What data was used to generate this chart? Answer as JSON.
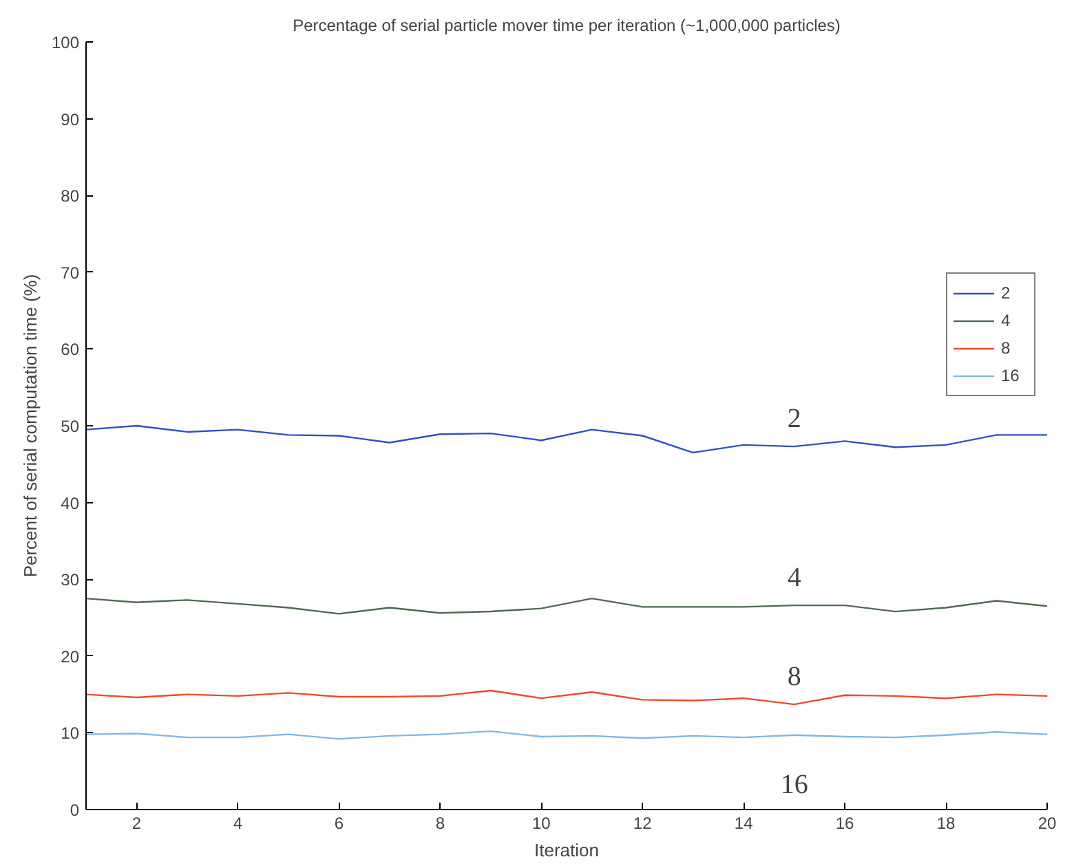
{
  "chart_data": {
    "type": "line",
    "title": "Percentage of serial particle mover time per iteration (~1,000,000 particles)",
    "xlabel": "Iteration",
    "ylabel": "Percent of serial computation time (%)",
    "x": [
      1,
      2,
      3,
      4,
      5,
      6,
      7,
      8,
      9,
      10,
      11,
      12,
      13,
      14,
      15,
      16,
      17,
      18,
      19,
      20
    ],
    "xlim": [
      1,
      20
    ],
    "xticks": [
      2,
      4,
      6,
      8,
      10,
      12,
      14,
      16,
      18,
      20
    ],
    "ylim": [
      0,
      100
    ],
    "yticks": [
      0,
      10,
      20,
      30,
      40,
      50,
      60,
      70,
      80,
      90,
      100
    ],
    "grid": false,
    "legend": "right",
    "line_style": "solid",
    "marker": "none",
    "series": [
      {
        "name": "2",
        "color": "#3050c8",
        "values": [
          49.5,
          50,
          49.2,
          49.5,
          48.8,
          48.7,
          47.8,
          48.9,
          49,
          48.1,
          49.5,
          48.7,
          46.5,
          47.5,
          47.3,
          48,
          47.2,
          47.5,
          48.8,
          48.8
        ]
      },
      {
        "name": "4",
        "color": "#506a50",
        "values": [
          27.5,
          27,
          27.3,
          26.8,
          26.3,
          25.5,
          26.3,
          25.6,
          25.8,
          26.2,
          27.5,
          26.4,
          26.4,
          26.4,
          26.6,
          26.6,
          25.8,
          26.3,
          27.2,
          26.5
        ]
      },
      {
        "name": "8",
        "color": "#f04a2a",
        "values": [
          15,
          14.6,
          15,
          14.8,
          15.2,
          14.7,
          14.7,
          14.8,
          15.5,
          14.5,
          15.3,
          14.3,
          14.2,
          14.5,
          13.7,
          14.9,
          14.8,
          14.5,
          15,
          14.8
        ]
      },
      {
        "name": "16",
        "color": "#80b8e8",
        "values": [
          9.8,
          9.9,
          9.4,
          9.4,
          9.8,
          9.2,
          9.6,
          9.8,
          10.2,
          9.5,
          9.6,
          9.3,
          9.6,
          9.4,
          9.7,
          9.5,
          9.4,
          9.7,
          10.1,
          9.8
        ]
      }
    ],
    "annotations": [
      "2",
      "4",
      "8",
      "16"
    ]
  }
}
